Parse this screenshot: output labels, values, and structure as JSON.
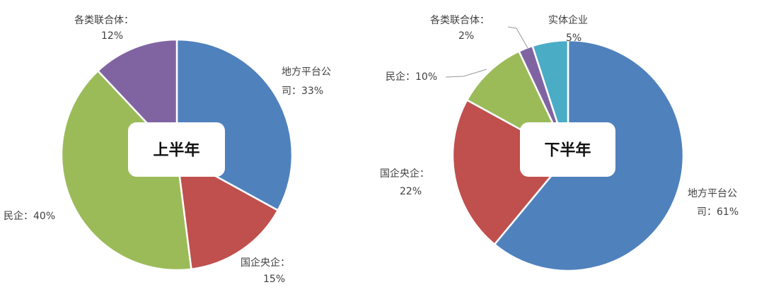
{
  "colors": {
    "地方平台公司": "#4F81BD",
    "国企央企": "#C0504D",
    "民企": "#9BBB59",
    "各类联合体": "#8064A2",
    "实体企业": "#4BACC6"
  },
  "chart_data": [
    {
      "type": "pie",
      "title": "上半年",
      "slices": [
        {
          "label": "地方平台公司",
          "value": 33,
          "label_text": [
            "地方平台公",
            "司：33%"
          ]
        },
        {
          "label": "国企央企",
          "value": 15,
          "label_text": [
            "国企央企：",
            "15%"
          ]
        },
        {
          "label": "民企",
          "value": 40,
          "label_text": [
            "民企：40%"
          ]
        },
        {
          "label": "各类联合体",
          "value": 12,
          "label_text": [
            "各类联合体：",
            "12%"
          ]
        }
      ]
    },
    {
      "type": "pie",
      "title": "下半年",
      "slices": [
        {
          "label": "地方平台公司",
          "value": 61,
          "label_text": [
            "地方平台公",
            "司：61%"
          ]
        },
        {
          "label": "国企央企",
          "value": 22,
          "label_text": [
            "国企央企：",
            "22%"
          ]
        },
        {
          "label": "民企",
          "value": 10,
          "label_text": [
            "民企：10%"
          ]
        },
        {
          "label": "各类联合体",
          "value": 2,
          "label_text": [
            "各类联合体：",
            "2%"
          ]
        },
        {
          "label": "实体企业",
          "value": 5,
          "label_text": [
            "实体企业",
            "5%"
          ]
        }
      ]
    }
  ]
}
